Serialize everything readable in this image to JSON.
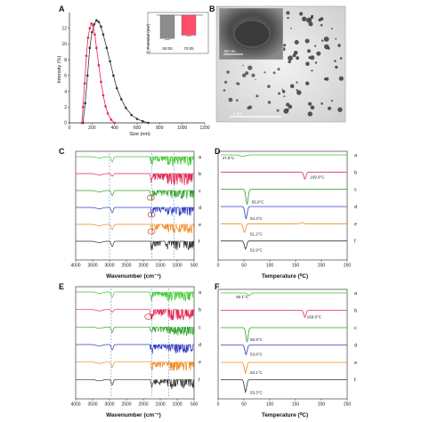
{
  "chart_data": [
    {
      "panel": "A",
      "type": "line",
      "xlabel": "Size (nm)",
      "ylabel": "Intensity (%)",
      "xlim": [
        0,
        1200
      ],
      "ylim": [
        0,
        14
      ],
      "xticks": [
        "0",
        "200",
        "400",
        "600",
        "800",
        "1000",
        "1200"
      ],
      "yticks": [
        "0",
        "2",
        "4",
        "6",
        "8",
        "10",
        "12"
      ],
      "series": [
        {
          "color": "#333333",
          "x": [
            120,
            140,
            160,
            180,
            200,
            220,
            240,
            260,
            280,
            300,
            330,
            360,
            390,
            420,
            460,
            500,
            550,
            600,
            650,
            700
          ],
          "y": [
            0,
            2.5,
            6,
            9.5,
            11.5,
            12.5,
            13,
            12.8,
            12.2,
            11.2,
            9.5,
            7.8,
            6,
            4.4,
            3,
            1.9,
            1,
            0.5,
            0.2,
            0
          ]
        },
        {
          "color": "#e8234a",
          "x": [
            110,
            120,
            135,
            150,
            165,
            180,
            195,
            210,
            225,
            240,
            260,
            280,
            300,
            320,
            340,
            370,
            400
          ],
          "y": [
            0,
            2,
            5,
            8.5,
            10.8,
            12,
            12.6,
            12.3,
            11.2,
            9.5,
            7.3,
            5.2,
            3.5,
            2.1,
            1.2,
            0.4,
            0
          ]
        }
      ]
    },
    {
      "panel": "A-inset",
      "type": "bar",
      "ylabel": "ζ_Potential (mV)",
      "categories": [
        "50:00",
        "70:05"
      ],
      "values": [
        -35,
        -30
      ],
      "ylim": [
        -40,
        0
      ],
      "colors": [
        "#8c8c8c",
        "#ff4d6d"
      ]
    },
    {
      "panel": "C",
      "type": "line",
      "xlabel": "Wavenumber (cm⁻¹)",
      "xlim": [
        4000,
        500
      ],
      "xticks": [
        "4000",
        "3500",
        "3000",
        "2500",
        "2000",
        "1500",
        "1000",
        "500"
      ],
      "trace_labels": [
        "a",
        "b",
        "c",
        "d",
        "e",
        "f"
      ],
      "trace_colors": [
        "#3fc832",
        "#e02a55",
        "#2ea32a",
        "#2f3cc2",
        "#f0871e",
        "#333333"
      ],
      "dashed_x": [
        3000,
        1750,
        1100
      ]
    },
    {
      "panel": "D",
      "type": "line",
      "xlabel": "Temperature (⁰C)",
      "xlim": [
        0,
        250
      ],
      "xticks": [
        "0",
        "50",
        "100",
        "150",
        "200",
        "250"
      ],
      "trace_labels": [
        "a",
        "b",
        "c",
        "d",
        "e",
        "f"
      ],
      "trace_colors": [
        "#3fc832",
        "#e02a55",
        "#2ea32a",
        "#2f3cc2",
        "#f0871e",
        "#333333"
      ],
      "annotations": [
        "47.6°C",
        "169.9°C",
        "55.9°C",
        "54.3°C",
        "51.2°C",
        "52.9°C"
      ]
    },
    {
      "panel": "E",
      "type": "line",
      "xlabel": "Wavenumber (cm⁻¹)",
      "xlim": [
        4000,
        500
      ],
      "xticks": [
        "4000",
        "3500",
        "3000",
        "2500",
        "2000",
        "1500",
        "1000",
        "500"
      ],
      "trace_labels": [
        "a",
        "b",
        "c",
        "d",
        "e",
        "f"
      ],
      "trace_colors": [
        "#3fc832",
        "#e02a55",
        "#2ea32a",
        "#2f3cc2",
        "#f0871e",
        "#333333"
      ],
      "dashed_x": [
        2950,
        1750,
        1250
      ]
    },
    {
      "panel": "F",
      "type": "line",
      "xlabel": "Temperature (⁰C)",
      "xlim": [
        0,
        250
      ],
      "xticks": [
        "0",
        "50",
        "100",
        "150",
        "200",
        "250"
      ],
      "trace_labels": [
        "a",
        "b",
        "c",
        "d",
        "e",
        "f"
      ],
      "trace_colors": [
        "#3fc832",
        "#e02a55",
        "#2ea32a",
        "#2f3cc2",
        "#f0871e",
        "#333333"
      ],
      "annotations": [
        "60.1°C",
        "169.9°C",
        "55.9°C",
        "53.8°C",
        "53.1°C",
        "53.3°C"
      ]
    }
  ],
  "panel_B": {
    "inset_scale": "50 nm",
    "main_scale": "2 μm"
  }
}
